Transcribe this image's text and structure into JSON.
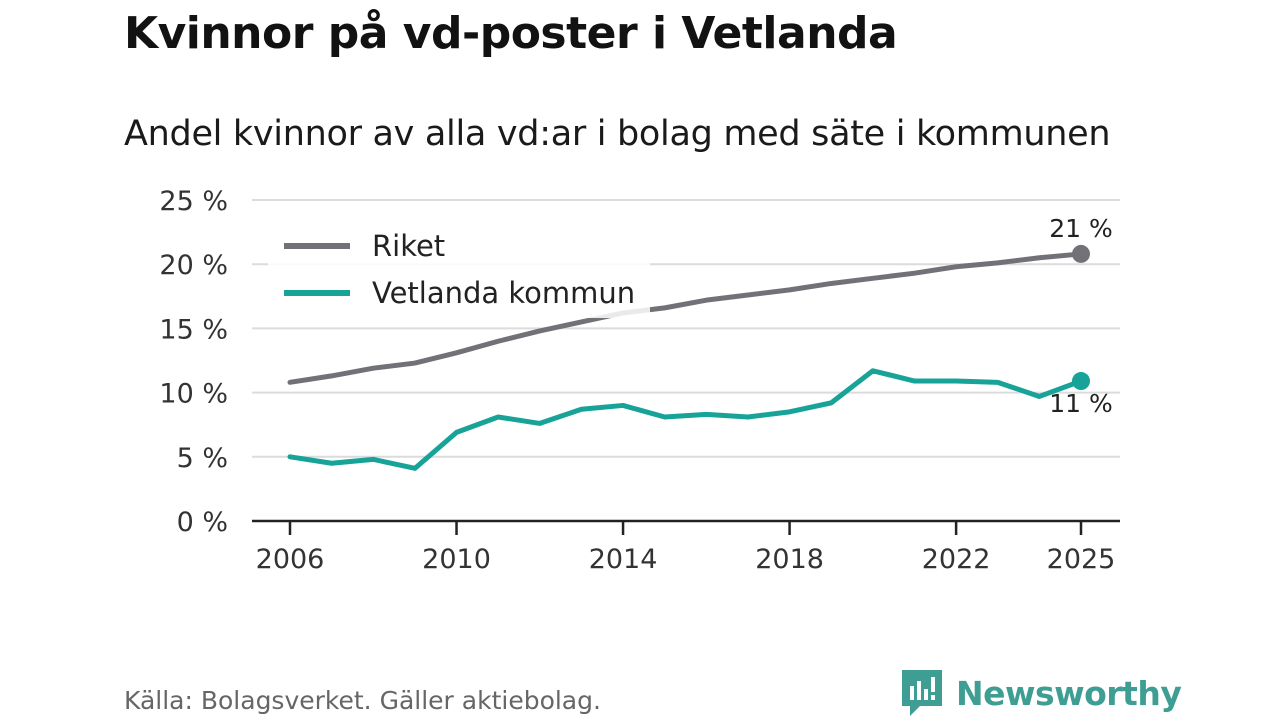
{
  "title": "Kvinnor på vd-poster i Vetlanda",
  "subtitle": "Andel kvinnor av alla vd:ar i bolag med säte i kommunen",
  "source": "Källa: Bolagsverket. Gäller aktiebolag.",
  "brand": {
    "name": "Newsworthy",
    "color": "#3e9e93"
  },
  "chart_data": {
    "type": "line",
    "title": "Kvinnor på vd-poster i Vetlanda",
    "subtitle": "Andel kvinnor av alla vd:ar i bolag med säte i kommunen",
    "xlabel": "",
    "ylabel": "",
    "x": [
      2006,
      2007,
      2008,
      2009,
      2010,
      2011,
      2012,
      2013,
      2014,
      2015,
      2016,
      2017,
      2018,
      2019,
      2020,
      2021,
      2022,
      2023,
      2024,
      2025
    ],
    "xlim": [
      2006,
      2025
    ],
    "ylim": [
      0,
      25
    ],
    "x_ticks": [
      2006,
      2010,
      2014,
      2018,
      2022,
      2025
    ],
    "y_ticks": [
      0,
      5,
      10,
      15,
      20,
      25
    ],
    "x_tick_labels": [
      "2006",
      "2010",
      "2014",
      "2018",
      "2022",
      "2025"
    ],
    "y_tick_labels": [
      "0 %",
      "5 %",
      "10 %",
      "15 %",
      "20 %",
      "25 %"
    ],
    "grid": true,
    "legend_position": "top-left",
    "series": [
      {
        "name": "Riket",
        "color": "#727178",
        "values": [
          10.8,
          11.3,
          11.9,
          12.3,
          13.1,
          14.0,
          14.8,
          15.5,
          16.2,
          16.6,
          17.2,
          17.6,
          18.0,
          18.5,
          18.9,
          19.3,
          19.8,
          20.1,
          20.5,
          20.8
        ],
        "end_label": "21 %"
      },
      {
        "name": "Vetlanda kommun",
        "color": "#17a398",
        "values": [
          5.0,
          4.5,
          4.8,
          4.1,
          6.9,
          8.1,
          7.6,
          8.7,
          9.0,
          8.1,
          8.3,
          8.1,
          8.5,
          9.2,
          11.7,
          10.9,
          10.9,
          10.8,
          9.7,
          10.9
        ],
        "end_label": "11 %"
      }
    ]
  }
}
